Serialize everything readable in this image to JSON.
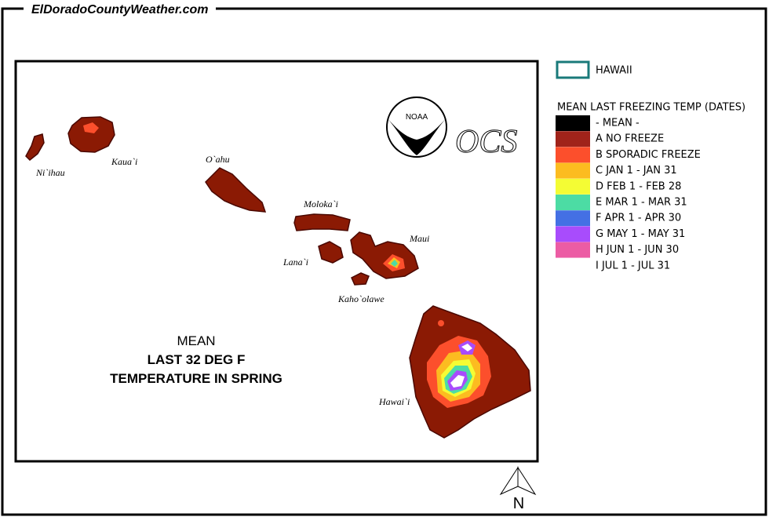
{
  "site": "ElDoradoCountyWeather.com",
  "map": {
    "islands": [
      {
        "label": "Ni`ihau"
      },
      {
        "label": "Kaua`i"
      },
      {
        "label": "O`ahu"
      },
      {
        "label": "Moloka`i"
      },
      {
        "label": "Lana`i"
      },
      {
        "label": "Maui"
      },
      {
        "label": "Kaho`olawe"
      },
      {
        "label": "Hawai`i"
      }
    ],
    "caption": [
      "MEAN",
      "LAST 32 DEG F",
      "TEMPERATURE IN SPRING"
    ],
    "logo_noaa": "NOAA",
    "logo_ocs": "OCS"
  },
  "legend": {
    "region": "HAWAII",
    "title": "MEAN LAST FREEZING TEMP (DATES)",
    "items": [
      {
        "label": "- MEAN -",
        "color": "#000000"
      },
      {
        "label": "A NO FREEZE",
        "color": "#a0231a"
      },
      {
        "label": "B SPORADIC FREEZE",
        "color": "#fc4f2c"
      },
      {
        "label": "C JAN 1 - JAN 31",
        "color": "#fcbc20"
      },
      {
        "label": "D FEB 1 - FEB 28",
        "color": "#f4fc34"
      },
      {
        "label": "E MAR 1 - MAR 31",
        "color": "#4cdca4"
      },
      {
        "label": "F APR 1 - APR 30",
        "color": "#4470e4"
      },
      {
        "label": "G MAY 1 - MAY 31",
        "color": "#a84cfc"
      },
      {
        "label": "H JUN 1 - JUN 30",
        "color": "#ec5ca4"
      },
      {
        "label": "I JUL 1 - JUL 31",
        "color": "#ffffff"
      }
    ]
  },
  "compass": "N"
}
